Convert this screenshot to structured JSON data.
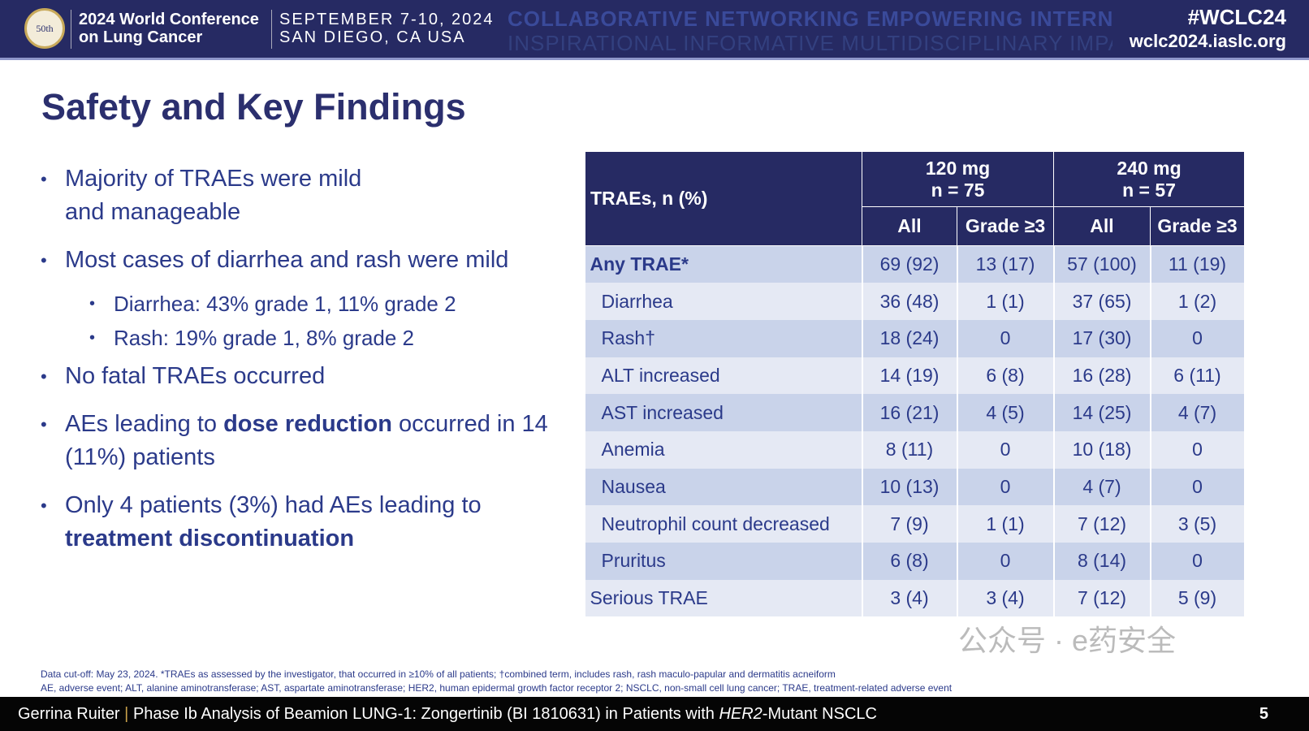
{
  "header": {
    "conference_line1": "2024 World Conference",
    "conference_line2": "on Lung Cancer",
    "date": "SEPTEMBER 7-10, 2024",
    "location": "SAN DIEGO, CA USA",
    "hashtag": "#WCLC24",
    "url": "wclc2024.iaslc.org",
    "logo_text": "50th IASLC",
    "background_words_1": "COLLABORATIVE NETWORKING EMPOWERING INTERNATIONAL COLLABORATIVE NETWORKING EMPOWERING",
    "background_words_2": "INSPIRATIONAL INFORMATIVE MULTIDISCIPLINARY IMPACTFUL INSPIRATIONAL INFORMATIVE MULTIDISCIPLINARY"
  },
  "title": "Safety and Key Findings",
  "bullets": {
    "b1": "Majority of TRAEs were mild and manageable",
    "b2": "Most cases of diarrhea and rash were mild",
    "b2s1": "Diarrhea: 43% grade 1, 11% grade 2",
    "b2s2": "Rash: 19% grade 1, 8% grade 2",
    "b3": "No fatal TRAEs occurred",
    "b4a": "AEs leading to ",
    "b4b": "dose reduction",
    "b4c": " occurred in 14 (11%) patients",
    "b5a": "Only 4 patients (3%) had AEs leading to ",
    "b5b": "treatment discontinuation"
  },
  "table": {
    "corner": "TRAEs, n (%)",
    "g1": "120 mg",
    "g1n": "n = 75",
    "g2": "240 mg",
    "g2n": "n = 57",
    "sub": [
      "All",
      "Grade ≥3",
      "All",
      "Grade ≥3"
    ],
    "rows": [
      {
        "name": "Any TRAE*",
        "v": [
          "69 (92)",
          "13 (17)",
          "57 (100)",
          "11 (19)"
        ]
      },
      {
        "name": "Diarrhea",
        "v": [
          "36 (48)",
          "1 (1)",
          "37 (65)",
          "1 (2)"
        ]
      },
      {
        "name": "Rash†",
        "v": [
          "18 (24)",
          "0",
          "17 (30)",
          "0"
        ]
      },
      {
        "name": "ALT increased",
        "v": [
          "14 (19)",
          "6 (8)",
          "16 (28)",
          "6 (11)"
        ]
      },
      {
        "name": "AST increased",
        "v": [
          "16 (21)",
          "4 (5)",
          "14 (25)",
          "4 (7)"
        ]
      },
      {
        "name": "Anemia",
        "v": [
          "8 (11)",
          "0",
          "10 (18)",
          "0"
        ]
      },
      {
        "name": "Nausea",
        "v": [
          "10 (13)",
          "0",
          "4 (7)",
          "0"
        ]
      },
      {
        "name": "Neutrophil count decreased",
        "v": [
          "7 (9)",
          "1 (1)",
          "7 (12)",
          "3 (5)"
        ]
      },
      {
        "name": "Pruritus",
        "v": [
          "6 (8)",
          "0",
          "8 (14)",
          "0"
        ]
      },
      {
        "name": "Serious TRAE",
        "v": [
          "3 (4)",
          "3 (4)",
          "7 (12)",
          "5 (9)"
        ]
      }
    ]
  },
  "notes": {
    "line1": "Data cut-off: May 23, 2024. *TRAEs as assessed by the investigator, that occurred in ≥10% of all patients; †combined term, includes rash, rash maculo-papular and dermatitis acneiform",
    "line2": "AE, adverse event; ALT, alanine aminotransferase; AST, aspartate aminotransferase; HER2, human epidermal growth factor receptor 2; NSCLC, non-small cell lung cancer; TRAE, treatment-related adverse event"
  },
  "watermark": "公众号 · e药安全",
  "footer": {
    "presenter": "Gerrina Ruiter",
    "sep": "|",
    "title_a": "Phase Ib Analysis of Beamion LUNG-1: Zongertinib (BI 1810631) in Patients with ",
    "title_b": "HER2",
    "title_c": "-Mutant NSCLC",
    "page": "5"
  }
}
